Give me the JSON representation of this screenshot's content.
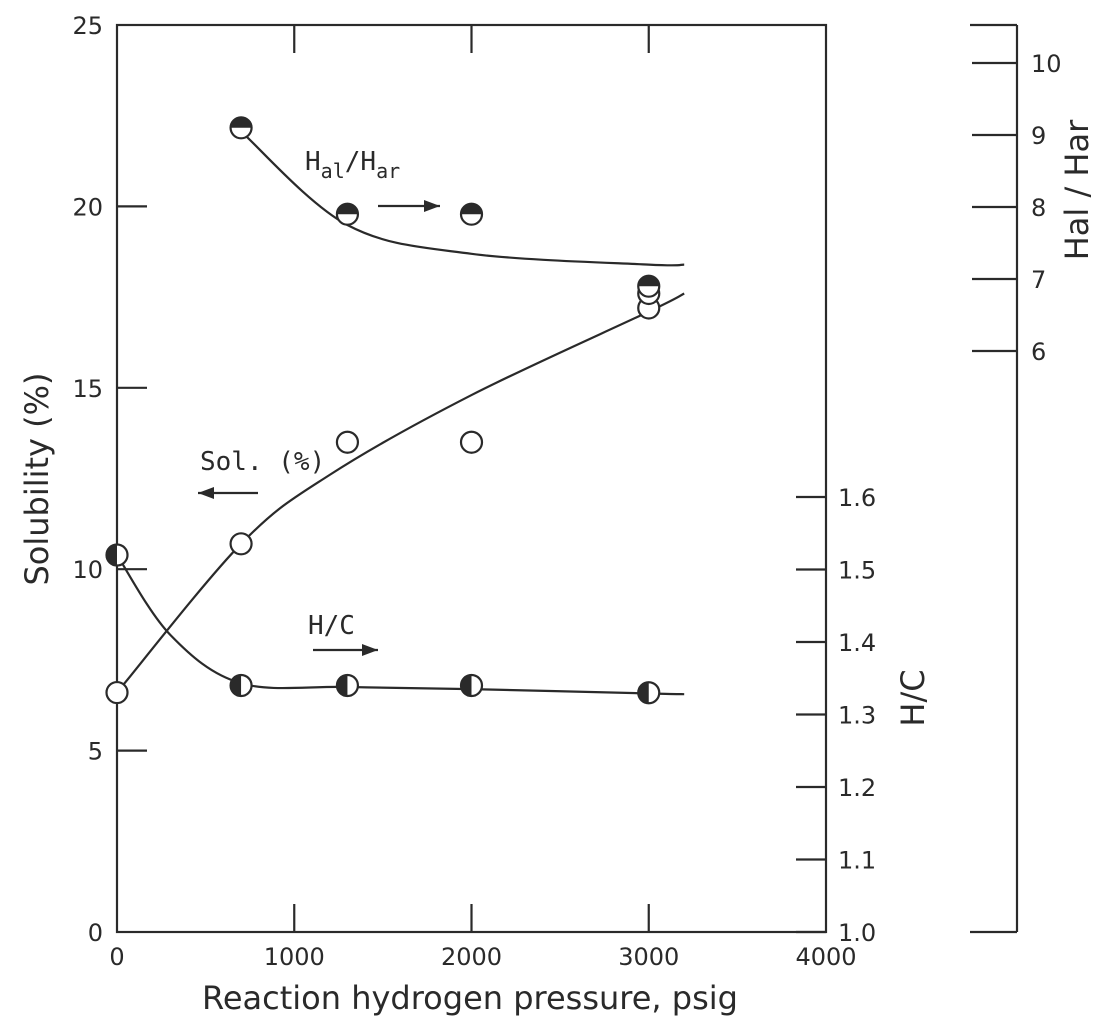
{
  "chart_data": {
    "type": "line",
    "xlabel": "Reaction hydrogen pressure, psig",
    "ylabel_left": "Solubility (%)",
    "ylabel_right_lower": "H/C",
    "ylabel_right_upper": "Hal / Har",
    "xlim": [
      0,
      4000
    ],
    "ylim_left": [
      0,
      25
    ],
    "ylim_hc": [
      1.0,
      1.6
    ],
    "ylim_hal": [
      6,
      10
    ],
    "x_ticks": [
      "0",
      "1000",
      "2000",
      "3000",
      "4000"
    ],
    "y_ticks_left": [
      "0",
      "5",
      "10",
      "15",
      "20",
      "25"
    ],
    "y_ticks_hc": [
      "1.0",
      "1.1",
      "1.2",
      "1.3",
      "1.4",
      "1.5",
      "1.6"
    ],
    "y_ticks_hal": [
      "6",
      "7",
      "8",
      "9",
      "10"
    ],
    "annotations": {
      "hal_har": "Hal/Har",
      "sol": "Sol. (%)",
      "hc": "H/C"
    },
    "series": [
      {
        "name": "Sol. (%)",
        "axis": "left",
        "marker": "open",
        "x": [
          0,
          700,
          1300,
          2000,
          3000,
          3000
        ],
        "y": [
          6.6,
          10.7,
          13.5,
          13.5,
          17.2,
          17.6
        ],
        "curve_x": [
          0,
          700,
          1200,
          2000,
          3000,
          3200
        ],
        "curve_y": [
          6.6,
          10.7,
          12.6,
          14.8,
          17.1,
          17.6
        ]
      },
      {
        "name": "H/C",
        "axis": "hc",
        "marker": "half-left",
        "x": [
          0,
          700,
          1300,
          2000,
          3000
        ],
        "y": [
          1.52,
          1.34,
          1.34,
          1.34,
          1.33
        ],
        "curve_x": [
          0,
          300,
          700,
          1300,
          2000,
          3000,
          3200
        ],
        "curve_y": [
          1.52,
          1.41,
          1.343,
          1.338,
          1.335,
          1.329,
          1.328
        ]
      },
      {
        "name": "Hal/Har",
        "axis": "hal",
        "marker": "half-top",
        "x": [
          700,
          1300,
          2000,
          3000
        ],
        "y": [
          9.1,
          7.9,
          7.9,
          6.9
        ],
        "curve_x": [
          700,
          1300,
          2000,
          3000,
          3200
        ],
        "curve_y": [
          9.05,
          7.75,
          7.35,
          7.2,
          7.2
        ]
      }
    ]
  }
}
